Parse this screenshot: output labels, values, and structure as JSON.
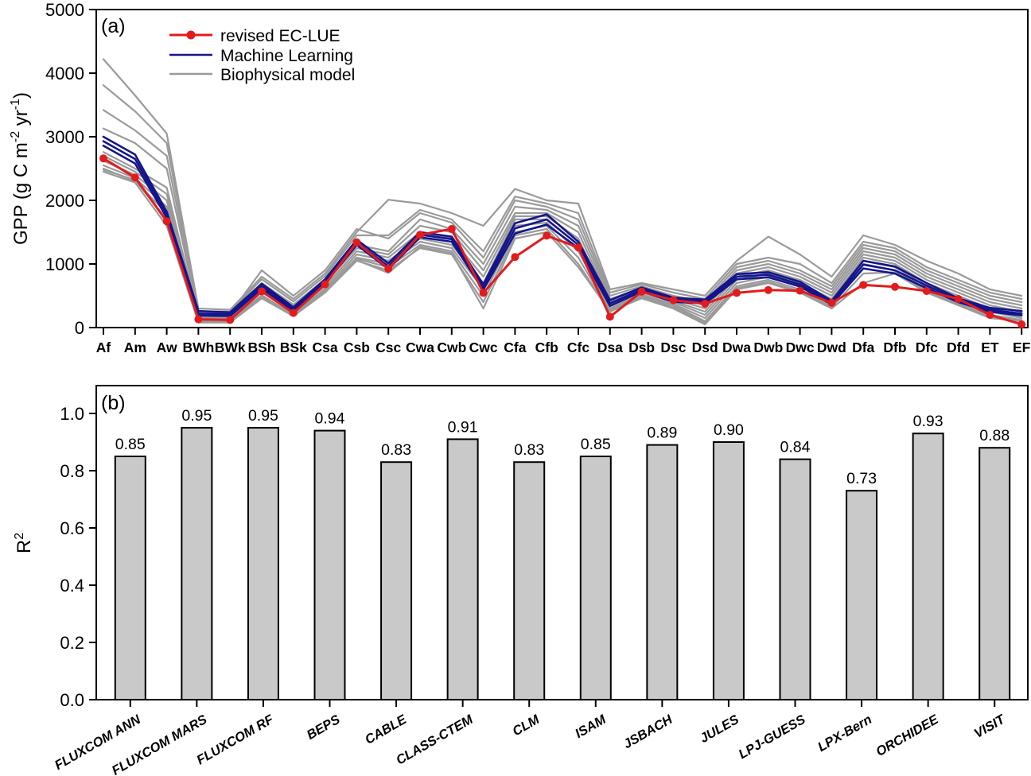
{
  "figure": {
    "panel_a_label": "(a)",
    "panel_b_label": "(b)",
    "colors": {
      "revised_ec_lue": "#e31b1c",
      "machine_learning": "#14148c",
      "biophysical": "#9a9a9a",
      "bar_fill": "#c9c9c9",
      "bar_stroke": "#000000",
      "frame": "#000000"
    }
  },
  "chart_data": [
    {
      "type": "line",
      "panel_label": "(a)",
      "ylabel": "GPP (g C m-2 yr-1)",
      "ylabel_parts": {
        "pre": "GPP (g C m",
        "sup1": "-2",
        "mid": " yr",
        "sup2": "-1",
        "post": ")"
      },
      "ylim": [
        0,
        5000
      ],
      "yticks": [
        0,
        1000,
        2000,
        3000,
        4000,
        5000
      ],
      "grid": false,
      "legend_position": "top-left-inside",
      "categories": [
        "Af",
        "Am",
        "Aw",
        "BWh",
        "BWk",
        "BSh",
        "BSk",
        "Csa",
        "Csb",
        "Csc",
        "Cwa",
        "Cwb",
        "Cwc",
        "Cfa",
        "Cfb",
        "Cfc",
        "Dsa",
        "Dsb",
        "Dsc",
        "Dsd",
        "Dwa",
        "Dwb",
        "Dwc",
        "Dwd",
        "Dfa",
        "Dfb",
        "Dfc",
        "Dfd",
        "ET",
        "EF"
      ],
      "legend": [
        {
          "label": "revised EC-LUE",
          "color": "#e31b1c",
          "marker": true
        },
        {
          "label": "Machine Learning",
          "color": "#14148c",
          "marker": false
        },
        {
          "label": "Biophysical model",
          "color": "#9a9a9a",
          "marker": false
        }
      ],
      "series": [
        {
          "name": "revised EC-LUE",
          "group": "ec_lue",
          "color": "#e31b1c",
          "values": [
            2660,
            2360,
            1670,
            130,
            120,
            570,
            230,
            680,
            1340,
            925,
            1460,
            1550,
            545,
            1110,
            1445,
            1260,
            170,
            565,
            430,
            375,
            545,
            590,
            580,
            390,
            670,
            640,
            575,
            450,
            200,
            50
          ]
        },
        {
          "name": "machine-learning-1",
          "group": "ml",
          "color": "#14148c",
          "values": [
            3000,
            2720,
            1820,
            260,
            240,
            690,
            320,
            760,
            1380,
            1010,
            1500,
            1430,
            680,
            1640,
            1780,
            1350,
            430,
            630,
            470,
            440,
            840,
            870,
            720,
            420,
            1050,
            960,
            700,
            460,
            310,
            260
          ]
        },
        {
          "name": "machine-learning-2",
          "group": "ml",
          "color": "#14148c",
          "values": [
            2930,
            2650,
            1780,
            220,
            210,
            650,
            290,
            720,
            1340,
            960,
            1460,
            1390,
            630,
            1560,
            1700,
            1300,
            380,
            600,
            440,
            410,
            800,
            830,
            680,
            390,
            990,
            900,
            660,
            430,
            280,
            220
          ]
        },
        {
          "name": "machine-learning-3",
          "group": "ml",
          "color": "#14148c",
          "values": [
            2860,
            2580,
            1730,
            190,
            180,
            615,
            265,
            695,
            1300,
            920,
            1420,
            1350,
            595,
            1480,
            1620,
            1250,
            340,
            570,
            405,
            380,
            760,
            790,
            645,
            365,
            930,
            850,
            620,
            400,
            250,
            190
          ]
        },
        {
          "name": "biophysical-1",
          "group": "bio",
          "color": "#9a9a9a",
          "values": [
            4220,
            3650,
            3050,
            300,
            280,
            800,
            450,
            850,
            1500,
            2010,
            1950,
            1800,
            1600,
            2180,
            2000,
            1950,
            600,
            700,
            600,
            500,
            1050,
            1430,
            1150,
            800,
            1450,
            1300,
            1050,
            850,
            600,
            500
          ]
        },
        {
          "name": "biophysical-2",
          "group": "bio",
          "color": "#9a9a9a",
          "values": [
            3810,
            3400,
            2900,
            260,
            250,
            760,
            410,
            810,
            1450,
            1450,
            1850,
            1700,
            1200,
            2060,
            1950,
            1800,
            550,
            680,
            550,
            450,
            1000,
            1100,
            1000,
            700,
            1350,
            1250,
            950,
            750,
            550,
            450
          ]
        },
        {
          "name": "biophysical-3",
          "group": "bio",
          "color": "#9a9a9a",
          "values": [
            3420,
            3100,
            2700,
            230,
            220,
            900,
            500,
            900,
            1550,
            1400,
            1800,
            1650,
            1100,
            2000,
            1900,
            1700,
            500,
            650,
            500,
            400,
            950,
            1050,
            900,
            650,
            1300,
            1200,
            900,
            700,
            500,
            400
          ]
        },
        {
          "name": "biophysical-4",
          "group": "bio",
          "color": "#9a9a9a",
          "values": [
            3130,
            2900,
            2500,
            200,
            200,
            700,
            360,
            760,
            1300,
            1200,
            1700,
            1550,
            1000,
            1900,
            1850,
            1600,
            450,
            620,
            480,
            350,
            900,
            1000,
            850,
            600,
            1250,
            1150,
            850,
            650,
            450,
            350
          ]
        },
        {
          "name": "biophysical-5",
          "group": "bio",
          "color": "#9a9a9a",
          "values": [
            2760,
            2500,
            2200,
            160,
            150,
            660,
            300,
            700,
            1250,
            1150,
            1600,
            1500,
            900,
            1800,
            1800,
            1500,
            400,
            600,
            450,
            300,
            850,
            950,
            800,
            550,
            1200,
            1100,
            800,
            600,
            400,
            300
          ]
        },
        {
          "name": "biophysical-6",
          "group": "bio",
          "color": "#9a9a9a",
          "values": [
            2700,
            2450,
            2100,
            140,
            130,
            610,
            260,
            650,
            1200,
            1100,
            1500,
            1400,
            800,
            1750,
            1750,
            1400,
            350,
            580,
            420,
            250,
            800,
            900,
            750,
            500,
            1150,
            1050,
            750,
            550,
            350,
            250
          ]
        },
        {
          "name": "biophysical-7",
          "group": "bio",
          "color": "#9a9a9a",
          "values": [
            2620,
            2400,
            2000,
            120,
            110,
            560,
            230,
            610,
            1150,
            1050,
            1400,
            1300,
            700,
            1700,
            1700,
            1300,
            300,
            550,
            400,
            200,
            750,
            850,
            700,
            450,
            1100,
            1000,
            700,
            500,
            300,
            200
          ]
        },
        {
          "name": "biophysical-8",
          "group": "bio",
          "color": "#9a9a9a",
          "values": [
            2550,
            2350,
            1900,
            100,
            100,
            510,
            200,
            580,
            1100,
            1000,
            1350,
            1250,
            600,
            1600,
            1650,
            1200,
            280,
            520,
            370,
            150,
            700,
            800,
            650,
            400,
            1050,
            950,
            650,
            450,
            250,
            150
          ]
        },
        {
          "name": "biophysical-9",
          "group": "bio",
          "color": "#9a9a9a",
          "values": [
            2500,
            2300,
            1800,
            90,
            90,
            480,
            190,
            560,
            1080,
            950,
            1300,
            1200,
            500,
            1500,
            1600,
            1100,
            260,
            500,
            350,
            100,
            650,
            750,
            600,
            350,
            1000,
            900,
            600,
            400,
            200,
            120
          ]
        },
        {
          "name": "biophysical-10",
          "group": "bio",
          "color": "#9a9a9a",
          "values": [
            2450,
            2280,
            1600,
            80,
            80,
            460,
            180,
            550,
            1050,
            900,
            1250,
            1150,
            400,
            1450,
            1550,
            1000,
            250,
            480,
            320,
            80,
            620,
            720,
            570,
            320,
            850,
            870,
            570,
            370,
            170,
            110
          ]
        },
        {
          "name": "biophysical-11",
          "group": "bio",
          "color": "#9a9a9a",
          "values": [
            2480,
            2320,
            1700,
            85,
            85,
            470,
            185,
            555,
            1060,
            860,
            1270,
            1170,
            300,
            1400,
            1500,
            950,
            255,
            460,
            300,
            50,
            600,
            700,
            550,
            300,
            700,
            850,
            550,
            350,
            150,
            100
          ]
        }
      ]
    },
    {
      "type": "bar",
      "panel_label": "(b)",
      "ylabel": "R2",
      "ylabel_parts": {
        "base": "R",
        "sup": "2"
      },
      "ylim": [
        0,
        1.1
      ],
      "yticks": [
        0,
        0.2,
        0.4,
        0.6,
        0.8,
        1.0
      ],
      "grid": false,
      "categories": [
        "FLUXCOM ANN",
        "FLUXCOM MARS",
        "FLUXCOM RF",
        "BEPS",
        "CABLE",
        "CLASS-CTEM",
        "CLM",
        "ISAM",
        "JSBACH",
        "JULES",
        "LPJ-GUESS",
        "LPX-Bern",
        "ORCHIDEE",
        "VISIT"
      ],
      "values": [
        0.85,
        0.95,
        0.95,
        0.94,
        0.83,
        0.91,
        0.83,
        0.85,
        0.89,
        0.9,
        0.84,
        0.73,
        0.93,
        0.88
      ],
      "bar_labels": [
        "0.85",
        "0.95",
        "0.95",
        "0.94",
        "0.83",
        "0.91",
        "0.83",
        "0.85",
        "0.89",
        "0.90",
        "0.84",
        "0.73",
        "0.93",
        "0.88"
      ],
      "bar_fill": "#c9c9c9",
      "bar_stroke": "#000000"
    }
  ]
}
